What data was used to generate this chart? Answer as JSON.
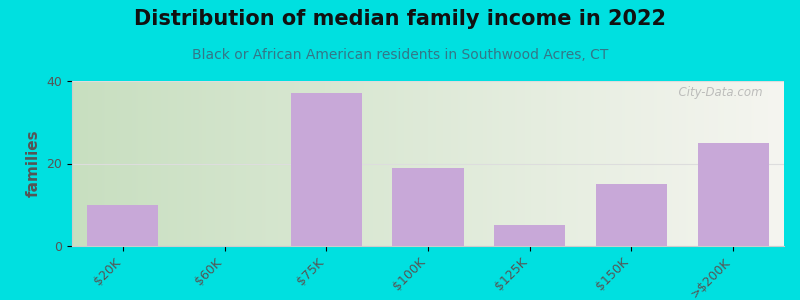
{
  "title": "Distribution of median family income in 2022",
  "subtitle": "Black or African American residents in Southwood Acres, CT",
  "categories": [
    "$20K",
    "$60K",
    "$75K",
    "$100K",
    "$125K",
    "$150K",
    ">$200K"
  ],
  "values": [
    10,
    0,
    37,
    19,
    5,
    15,
    25
  ],
  "bar_color": "#c8a8d8",
  "background_outer": "#00e0e0",
  "bg_colors": [
    "#c8dfc0",
    "#ddeedd",
    "#eef5ee",
    "#f5f8f0",
    "#f8f8f0",
    "#f5f0ee",
    "#f0eef5"
  ],
  "ylabel": "families",
  "ylim": [
    0,
    40
  ],
  "yticks": [
    0,
    20,
    40
  ],
  "title_fontsize": 15,
  "subtitle_fontsize": 10,
  "tick_color": "#555555",
  "title_color": "#111111",
  "subtitle_color": "#337788",
  "watermark": "  City-Data.com",
  "grid_color": "#dddddd",
  "spine_color": "#cccccc"
}
